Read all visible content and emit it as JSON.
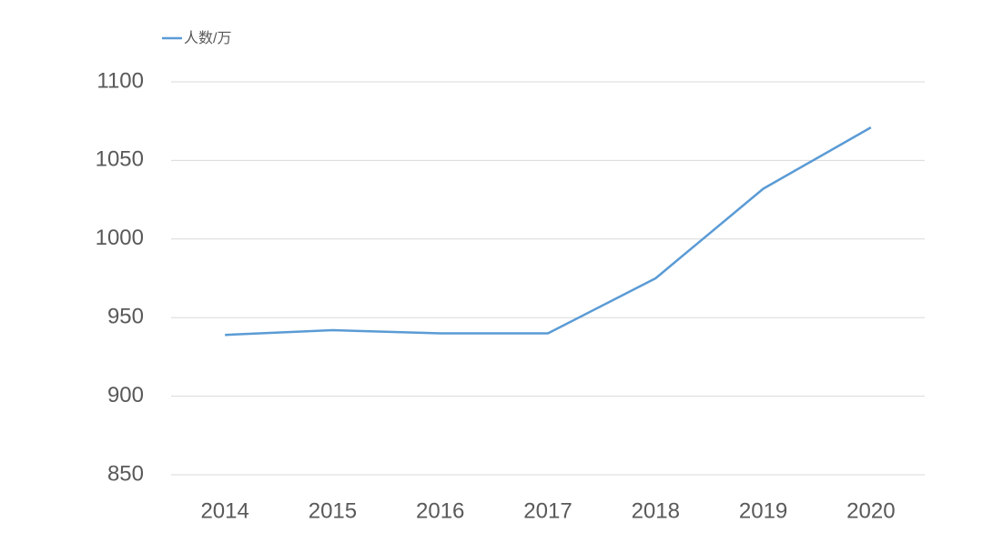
{
  "chart_data": {
    "type": "line",
    "categories": [
      "2014",
      "2015",
      "2016",
      "2017",
      "2018",
      "2019",
      "2020"
    ],
    "series": [
      {
        "name": "人数/万",
        "color": "#5b9bd5",
        "values": [
          939,
          942,
          940,
          940,
          975,
          1032,
          1071
        ]
      }
    ],
    "ylim": [
      850,
      1100
    ],
    "yticks": [
      850,
      900,
      950,
      1000,
      1050,
      1100
    ],
    "grid": true,
    "legend": "top-left"
  }
}
